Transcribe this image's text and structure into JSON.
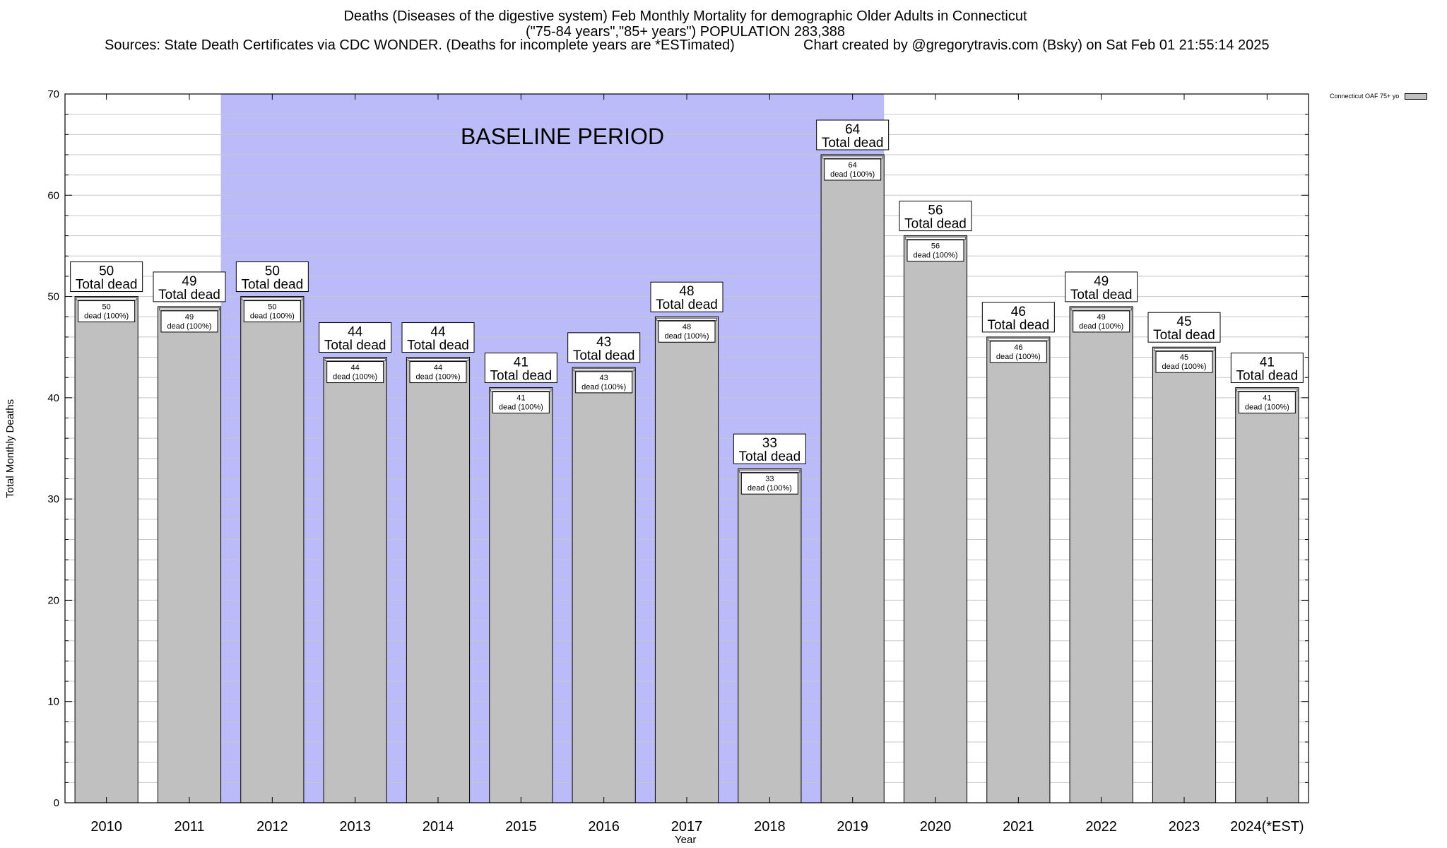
{
  "header": {
    "title_line1": "Deaths (Diseases of the digestive system) Feb Monthly Mortality for demographic Older Adults in Connecticut",
    "title_line2": "(\"75-84 years\",\"85+ years\") POPULATION 283,388",
    "sources": "Sources: State Death Certificates via CDC WONDER. (Deaths for incomplete years are *ESTimated)",
    "credit": "Chart created by @gregorytravis.com (Bsky) on Sat Feb 01 21:55:14 2025"
  },
  "colors": {
    "bar_fill": "#c0c0c0",
    "baseline_fill": "#bbbbfa",
    "grid": "#c8c8c8"
  },
  "chart_data": {
    "type": "bar",
    "xlabel": "Year",
    "ylabel": "Total Monthly Deaths",
    "ylim": [
      0,
      70
    ],
    "yticks": [
      0,
      10,
      20,
      30,
      40,
      50,
      60,
      70
    ],
    "grid": true,
    "legend_position": "top-right",
    "categories": [
      "2010",
      "2011",
      "2012",
      "2013",
      "2014",
      "2015",
      "2016",
      "2017",
      "2018",
      "2019",
      "2020",
      "2021",
      "2022",
      "2023",
      "2024(*EST)"
    ],
    "series": [
      {
        "name": "Connecticut OAF 75+ yo",
        "values": [
          50,
          49,
          50,
          44,
          44,
          41,
          43,
          48,
          33,
          64,
          56,
          46,
          49,
          45,
          41
        ]
      }
    ],
    "total_label_suffix": "Total dead",
    "inner_label_suffix": "dead (100%)",
    "annotation": {
      "text": "BASELINE PERIOD",
      "from_category": "2012",
      "to_category": "2019"
    }
  }
}
